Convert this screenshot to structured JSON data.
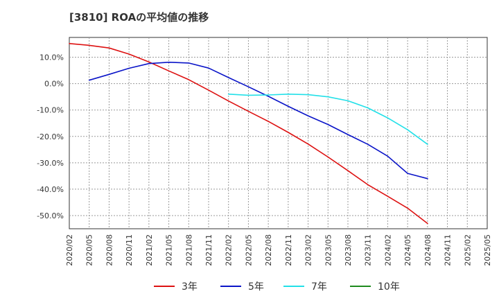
{
  "chart_data": {
    "type": "line",
    "title": "[3810]  ROAの平均値の推移",
    "xlabel": "",
    "ylabel": "",
    "x": [
      "2020/02",
      "2020/05",
      "2020/08",
      "2020/11",
      "2021/02",
      "2021/05",
      "2021/08",
      "2021/11",
      "2022/02",
      "2022/05",
      "2022/08",
      "2022/11",
      "2023/02",
      "2023/05",
      "2023/08",
      "2023/11",
      "2024/02",
      "2024/05",
      "2024/08",
      "2024/11",
      "2025/02",
      "2025/05"
    ],
    "ylim": [
      -55,
      17.5
    ],
    "yticks": [
      10,
      0,
      -10,
      -20,
      -30,
      -40,
      -50
    ],
    "ytick_labels": [
      "10.0%",
      "0.0%",
      "-10.0%",
      "-20.0%",
      "-30.0%",
      "-40.0%",
      "-50.0%"
    ],
    "grid": true,
    "legend_position": "bottom",
    "series": [
      {
        "name": "3年",
        "color": "#dd1111",
        "values": [
          15.2,
          14.5,
          13.5,
          11.2,
          8.2,
          4.8,
          1.5,
          -2.5,
          -6.6,
          -10.5,
          -14.3,
          -18.5,
          -22.9,
          -27.8,
          -33.0,
          -38.3,
          -42.7,
          -47.2,
          -53.0,
          null,
          null,
          null
        ]
      },
      {
        "name": "5年",
        "color": "#0a14c8",
        "values": [
          null,
          1.3,
          3.5,
          5.8,
          7.6,
          8.1,
          7.8,
          5.9,
          2.3,
          -1.2,
          -4.8,
          -8.6,
          -12.2,
          -15.5,
          -19.3,
          -23.0,
          -27.5,
          -34.0,
          -36.0,
          null,
          null,
          null
        ]
      },
      {
        "name": "7年",
        "color": "#22e0e8",
        "values": [
          null,
          null,
          null,
          null,
          null,
          null,
          null,
          null,
          -4.0,
          -4.4,
          -4.3,
          -4.0,
          -4.2,
          -5.0,
          -6.5,
          -9.2,
          -13.0,
          -17.5,
          -23.0,
          null,
          null,
          null
        ]
      },
      {
        "name": "10年",
        "color": "#1e8a1e",
        "values": [
          null,
          null,
          null,
          null,
          null,
          null,
          null,
          null,
          null,
          null,
          null,
          null,
          null,
          null,
          null,
          null,
          null,
          null,
          null,
          null,
          null,
          null
        ]
      }
    ]
  }
}
